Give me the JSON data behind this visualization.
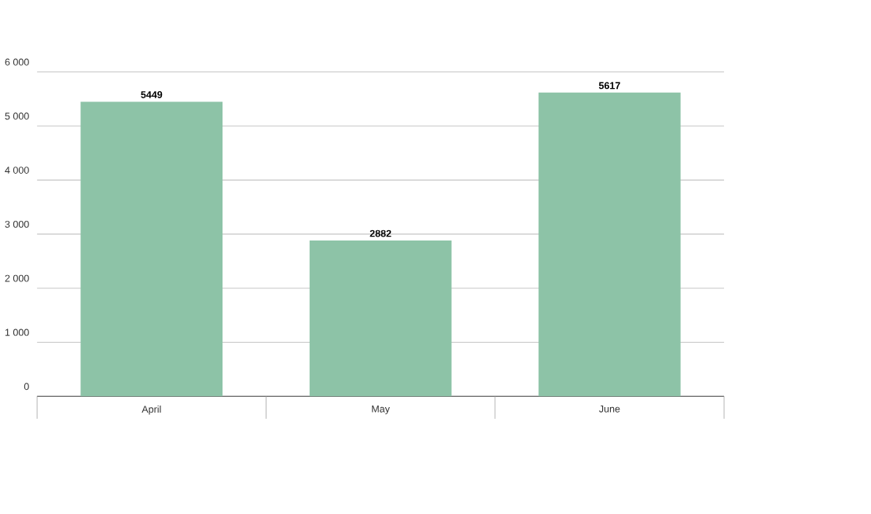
{
  "chart_data": {
    "type": "bar",
    "categories": [
      "April",
      "May",
      "June"
    ],
    "values": [
      5449,
      2882,
      5617
    ],
    "color": "#8dc3a7",
    "ylim": [
      0,
      6000
    ],
    "yticks": [
      0,
      {
        "value": 1000,
        "label": "1 000"
      },
      {
        "value": 2000,
        "label": "2 000"
      },
      {
        "value": 3000,
        "label": "3 000"
      },
      {
        "value": 4000,
        "label": "4 000"
      },
      {
        "value": 5000,
        "label": "5 000"
      },
      {
        "value": 6000,
        "label": "6 000"
      }
    ],
    "grid": "y",
    "data_labels": true
  }
}
